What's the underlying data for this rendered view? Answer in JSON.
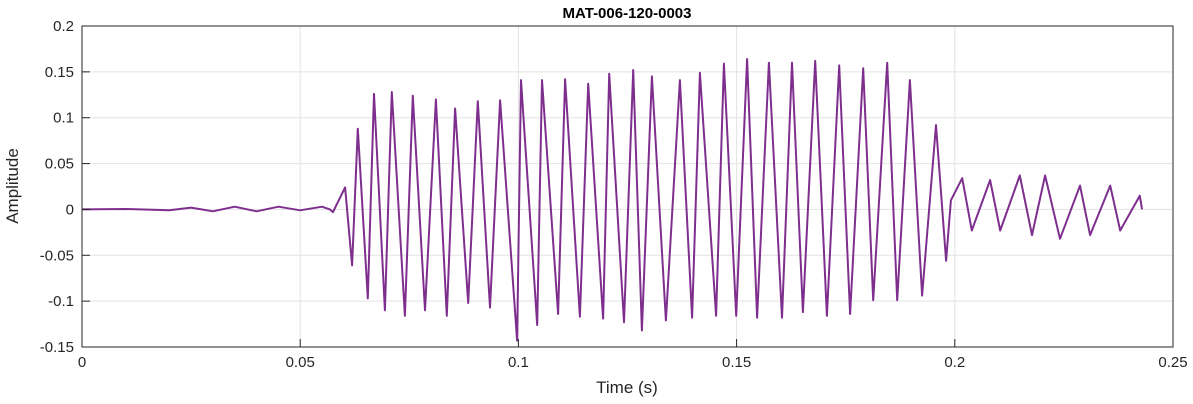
{
  "chart_data": {
    "type": "line",
    "title": "MAT-006-120-0003",
    "xlabel": "Time (s)",
    "ylabel": "Amplitude",
    "xlim": [
      0,
      0.25
    ],
    "ylim": [
      -0.15,
      0.2
    ],
    "xticks": [
      0,
      0.05,
      0.1,
      0.15,
      0.2,
      0.25
    ],
    "xtick_labels": [
      "0",
      "0.05",
      "0.1",
      "0.15",
      "0.2",
      "0.25"
    ],
    "yticks": [
      -0.15,
      -0.1,
      -0.05,
      0,
      0.05,
      0.1,
      0.15,
      0.2
    ],
    "ytick_labels": [
      "-0.15",
      "-0.1",
      "-0.05",
      "0",
      "0.05",
      "0.1",
      "0.15",
      "0.2"
    ],
    "grid": true,
    "series": [
      {
        "name": "signal",
        "color": "#7E2F8E",
        "points": [
          [
            0,
            0
          ],
          [
            0.01,
            0.0005
          ],
          [
            0.02,
            -0.001
          ],
          [
            0.025,
            0.002
          ],
          [
            0.03,
            -0.002
          ],
          [
            0.035,
            0.003
          ],
          [
            0.04,
            -0.002
          ],
          [
            0.045,
            0.003
          ],
          [
            0.05,
            -0.001
          ],
          [
            0.055,
            0.003
          ],
          [
            0.0568,
            0.0
          ],
          [
            0.0575,
            -0.003
          ],
          [
            0.0603,
            0.024
          ],
          [
            0.0619,
            -0.061
          ],
          [
            0.0632,
            0.088
          ],
          [
            0.0655,
            -0.097
          ],
          [
            0.0669,
            0.126
          ],
          [
            0.0694,
            -0.11
          ],
          [
            0.071,
            0.128
          ],
          [
            0.074,
            -0.116
          ],
          [
            0.0758,
            0.124
          ],
          [
            0.0786,
            -0.11
          ],
          [
            0.0811,
            0.12
          ],
          [
            0.0836,
            -0.116
          ],
          [
            0.0855,
            0.11
          ],
          [
            0.0885,
            -0.102
          ],
          [
            0.0907,
            0.118
          ],
          [
            0.0935,
            -0.107
          ],
          [
            0.0958,
            0.119
          ],
          [
            0.0997,
            -0.143
          ],
          [
            0.1006,
            0.141
          ],
          [
            0.1043,
            -0.126
          ],
          [
            0.1054,
            0.141
          ],
          [
            0.1091,
            -0.114
          ],
          [
            0.1107,
            0.142
          ],
          [
            0.1141,
            -0.117
          ],
          [
            0.116,
            0.137
          ],
          [
            0.1194,
            -0.119
          ],
          [
            0.1208,
            0.148
          ],
          [
            0.1242,
            -0.123
          ],
          [
            0.1263,
            0.152
          ],
          [
            0.1283,
            -0.132
          ],
          [
            0.1306,
            0.145
          ],
          [
            0.1338,
            -0.121
          ],
          [
            0.137,
            0.141
          ],
          [
            0.1398,
            -0.118
          ],
          [
            0.1416,
            0.149
          ],
          [
            0.1453,
            -0.116
          ],
          [
            0.1471,
            0.159
          ],
          [
            0.1499,
            -0.116
          ],
          [
            0.1524,
            0.164
          ],
          [
            0.1547,
            -0.118
          ],
          [
            0.1574,
            0.16
          ],
          [
            0.1604,
            -0.118
          ],
          [
            0.1627,
            0.16
          ],
          [
            0.1652,
            -0.112
          ],
          [
            0.168,
            0.162
          ],
          [
            0.1707,
            -0.116
          ],
          [
            0.1735,
            0.157
          ],
          [
            0.176,
            -0.114
          ],
          [
            0.179,
            0.154
          ],
          [
            0.1813,
            -0.099
          ],
          [
            0.1845,
            0.16
          ],
          [
            0.1868,
            -0.099
          ],
          [
            0.1897,
            0.141
          ],
          [
            0.1925,
            -0.094
          ],
          [
            0.1957,
            0.092
          ],
          [
            0.198,
            -0.056
          ],
          [
            0.1991,
            0.01
          ],
          [
            0.2017,
            0.034
          ],
          [
            0.2039,
            -0.023
          ],
          [
            0.2081,
            0.032
          ],
          [
            0.2104,
            -0.023
          ],
          [
            0.2149,
            0.037
          ],
          [
            0.2177,
            -0.028
          ],
          [
            0.2207,
            0.037
          ],
          [
            0.2241,
            -0.032
          ],
          [
            0.2287,
            0.026
          ],
          [
            0.231,
            -0.028
          ],
          [
            0.2356,
            0.026
          ],
          [
            0.2379,
            -0.023
          ],
          [
            0.2424,
            0.015
          ],
          [
            0.2429,
            0.0
          ]
        ]
      }
    ]
  }
}
